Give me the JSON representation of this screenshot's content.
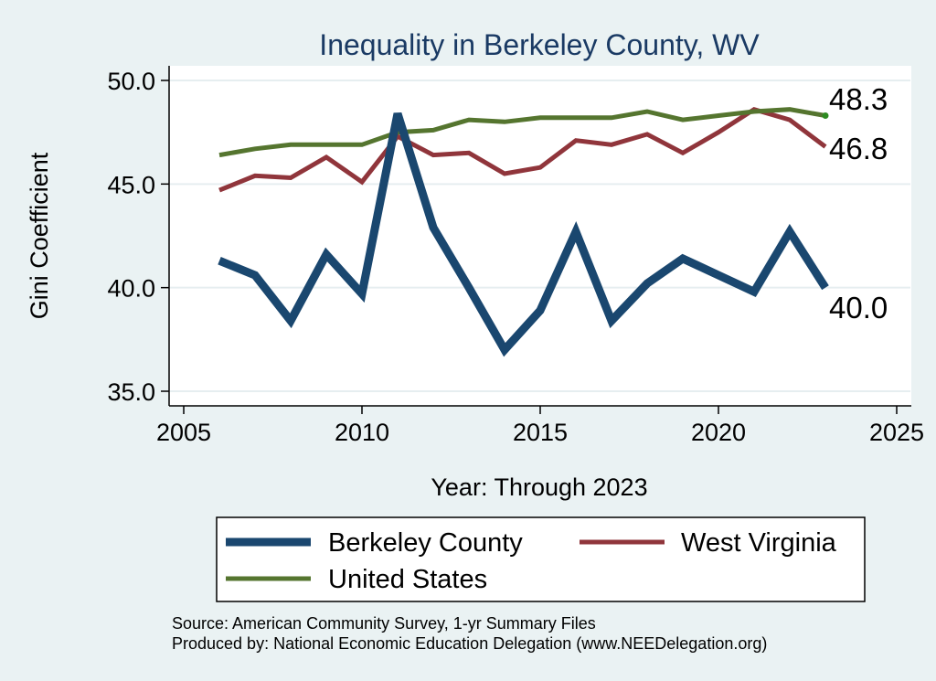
{
  "chart_data": {
    "type": "line",
    "title": "Inequality in Berkeley County, WV",
    "xlabel": "Year: Through 2023",
    "ylabel": "Gini Coefficient",
    "xlim": [
      2005,
      2025
    ],
    "ylim": [
      35,
      50
    ],
    "x_ticks": [
      "2005",
      "2010",
      "2015",
      "2020",
      "2025"
    ],
    "y_ticks": [
      "35.0",
      "40.0",
      "45.0",
      "50.0"
    ],
    "grid": true,
    "legend_position": "bottom",
    "series": [
      {
        "name": "Berkeley County",
        "color": "#1a476f",
        "x": [
          2006,
          2007,
          2008,
          2009,
          2010,
          2011,
          2012,
          2013,
          2014,
          2015,
          2016,
          2017,
          2018,
          2019,
          2020,
          2021,
          2022,
          2023
        ],
        "values": [
          41.3,
          40.6,
          38.4,
          41.6,
          39.7,
          48.4,
          42.9,
          40.0,
          37.0,
          38.9,
          42.7,
          38.4,
          40.2,
          41.4,
          40.6,
          39.8,
          42.7,
          40.0
        ],
        "end_label": "40.0"
      },
      {
        "name": "West Virginia",
        "color": "#90353b",
        "x": [
          2006,
          2007,
          2008,
          2009,
          2010,
          2011,
          2012,
          2013,
          2014,
          2015,
          2016,
          2017,
          2018,
          2019,
          2020,
          2021,
          2022,
          2023
        ],
        "values": [
          44.7,
          45.4,
          45.3,
          46.3,
          45.1,
          47.3,
          46.4,
          46.5,
          45.5,
          45.8,
          47.1,
          46.9,
          47.4,
          46.5,
          47.5,
          48.6,
          48.1,
          46.8
        ],
        "end_label": "46.8"
      },
      {
        "name": "United States",
        "color": "#55752f",
        "x": [
          2006,
          2007,
          2008,
          2009,
          2010,
          2011,
          2012,
          2013,
          2014,
          2015,
          2016,
          2017,
          2018,
          2019,
          2020,
          2021,
          2022,
          2023
        ],
        "values": [
          46.4,
          46.7,
          46.9,
          46.9,
          46.9,
          47.5,
          47.6,
          48.1,
          48.0,
          48.2,
          48.2,
          48.2,
          48.5,
          48.1,
          48.3,
          48.5,
          48.6,
          48.3
        ],
        "end_label": "48.3"
      }
    ],
    "legend": [
      "Berkeley County",
      "West Virginia",
      "United States"
    ],
    "source": "Source: American Community Survey, 1-yr Summary Files",
    "producer": "Produced by: National Economic Education Delegation (www.NEEDelegation.org)"
  },
  "colors": {
    "background": "#eaf2f3",
    "plot_background": "#ffffff",
    "grid": "#e6eef0",
    "axis": "#000000",
    "title": "#1a3a64",
    "us_end_marker": "#2e8b22"
  }
}
